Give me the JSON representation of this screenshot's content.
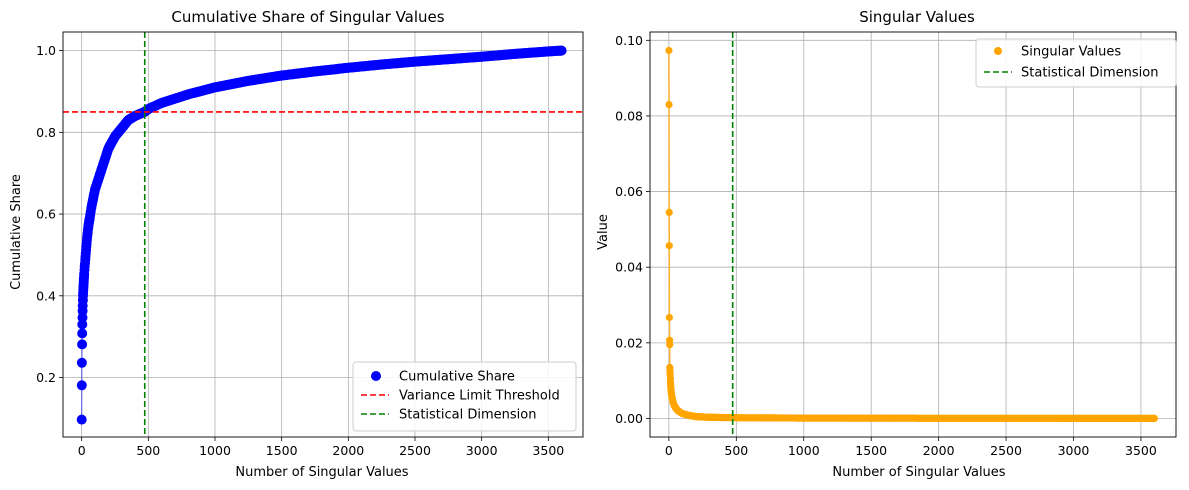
{
  "chart_data": [
    {
      "type": "scatter",
      "title": "Cumulative Share of Singular Values",
      "xlabel": "Number of Singular Values",
      "ylabel": "Cumulative Share",
      "xlim": [
        -140,
        3760
      ],
      "ylim": [
        0.0545,
        1.0455
      ],
      "xticks": [
        0,
        500,
        1000,
        1500,
        2000,
        2500,
        3000,
        3500
      ],
      "yticks": [
        0.2,
        0.4,
        0.6,
        0.8,
        1.0
      ],
      "ytick_labels": [
        "0.2",
        "0.4",
        "0.6",
        "0.8",
        "1.0"
      ],
      "grid": true,
      "legend_position": "lower-right",
      "n_points": 3600,
      "series": [
        {
          "name": "Cumulative Share",
          "color": "#0000ff",
          "style": "markers-with-line",
          "points": [
            [
              0,
              0.097
            ],
            [
              1,
              0.181
            ],
            [
              2,
              0.236
            ],
            [
              3,
              0.281
            ],
            [
              4,
              0.308
            ],
            [
              5,
              0.33
            ],
            [
              6,
              0.347
            ],
            [
              7,
              0.363
            ],
            [
              8,
              0.376
            ],
            [
              9,
              0.389
            ],
            [
              10,
              0.4
            ],
            [
              12,
              0.415
            ],
            [
              15,
              0.432
            ],
            [
              20,
              0.46
            ],
            [
              30,
              0.5
            ],
            [
              40,
              0.54
            ],
            [
              50,
              0.57
            ],
            [
              75,
              0.62
            ],
            [
              100,
              0.66
            ],
            [
              150,
              0.71
            ],
            [
              200,
              0.76
            ],
            [
              250,
              0.79
            ],
            [
              300,
              0.81
            ],
            [
              350,
              0.83
            ],
            [
              400,
              0.84
            ],
            [
              473,
              0.85
            ],
            [
              500,
              0.857
            ],
            [
              600,
              0.872
            ],
            [
              800,
              0.893
            ],
            [
              1000,
              0.91
            ],
            [
              1250,
              0.926
            ],
            [
              1500,
              0.939
            ],
            [
              1750,
              0.949
            ],
            [
              2000,
              0.958
            ],
            [
              2250,
              0.966
            ],
            [
              2500,
              0.973
            ],
            [
              2750,
              0.979
            ],
            [
              3000,
              0.985
            ],
            [
              3250,
              0.992
            ],
            [
              3500,
              0.998
            ],
            [
              3600,
              1.0
            ]
          ]
        }
      ],
      "reference_lines": [
        {
          "name": "Variance Limit Threshold",
          "orientation": "horizontal",
          "value": 0.85,
          "color": "#ff0000",
          "style": "dashed"
        },
        {
          "name": "Statistical Dimension",
          "orientation": "vertical",
          "value": 473,
          "color": "#008000",
          "style": "dashed"
        }
      ]
    },
    {
      "type": "scatter",
      "title": "Singular Values",
      "xlabel": "Number of Singular Values",
      "ylabel": "Value",
      "xlim": [
        -140,
        3760
      ],
      "ylim": [
        -0.0049,
        0.1022
      ],
      "xticks": [
        0,
        500,
        1000,
        1500,
        2000,
        2500,
        3000,
        3500
      ],
      "yticks": [
        0.0,
        0.02,
        0.04,
        0.06,
        0.08,
        0.1
      ],
      "ytick_labels": [
        "0.00",
        "0.02",
        "0.04",
        "0.06",
        "0.08",
        "0.10"
      ],
      "grid": true,
      "legend_position": "upper-right",
      "n_points": 3600,
      "series": [
        {
          "name": "Singular Values",
          "color": "#ffa500",
          "style": "markers-with-line",
          "points": [
            [
              0,
              0.0973
            ],
            [
              1,
              0.083
            ],
            [
              2,
              0.0545
            ],
            [
              3,
              0.0457
            ],
            [
              4,
              0.0267
            ],
            [
              5,
              0.0207
            ],
            [
              6,
              0.0195
            ],
            [
              7,
              0.0135
            ],
            [
              8,
              0.0127
            ],
            [
              10,
              0.0115
            ],
            [
              12,
              0.0095
            ],
            [
              15,
              0.0078
            ],
            [
              20,
              0.0062
            ],
            [
              25,
              0.0052
            ],
            [
              30,
              0.0044
            ],
            [
              40,
              0.0034
            ],
            [
              50,
              0.0028
            ],
            [
              60,
              0.0023
            ],
            [
              80,
              0.0017
            ],
            [
              100,
              0.0013
            ],
            [
              150,
              0.0008
            ],
            [
              200,
              0.0005
            ],
            [
              300,
              0.0003
            ],
            [
              473,
              0.0002
            ],
            [
              1000,
              0.0001
            ],
            [
              2000,
              5e-05
            ],
            [
              3000,
              3e-05
            ],
            [
              3600,
              2e-05
            ]
          ]
        }
      ],
      "reference_lines": [
        {
          "name": "Statistical Dimension",
          "orientation": "vertical",
          "value": 473,
          "color": "#008000",
          "style": "dashed"
        }
      ]
    }
  ]
}
